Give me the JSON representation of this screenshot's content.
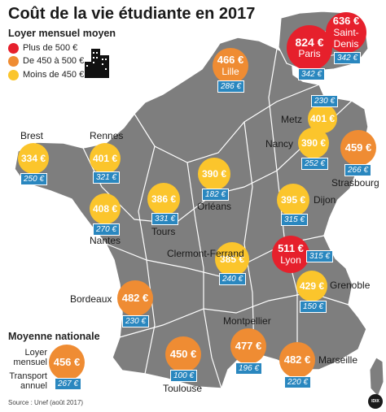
{
  "title": "Coût de la vie étudiante en 2017",
  "legend": {
    "title": "Loyer mensuel moyen",
    "items": [
      {
        "label": "Plus de 500 €",
        "color": "#e6202c"
      },
      {
        "label": "De 450 à 500 €",
        "color": "#ef8c33"
      },
      {
        "label": "Moins de 450 €",
        "color": "#fbc52c"
      }
    ]
  },
  "colors": {
    "map_fill": "#7e7e7e",
    "corsica_fill": "#7e7e7e",
    "border": "#ffffff",
    "tag_bg": "#2a87bf"
  },
  "cities": [
    {
      "name": "Saint-Denis",
      "rent": "636 €",
      "transport": "342 €",
      "tier": "red"
    },
    {
      "name": "Paris",
      "rent": "824 €",
      "transport": "342 €",
      "tier": "red"
    },
    {
      "name": "Lille",
      "rent": "466 €",
      "transport": "286 €",
      "tier": "orange"
    },
    {
      "name": "Metz",
      "rent": "401 €",
      "transport": "230 €",
      "tier": "yellow"
    },
    {
      "name": "Nancy",
      "rent": "390 €",
      "transport": "252 €",
      "tier": "yellow"
    },
    {
      "name": "Strasbourg",
      "rent": "459 €",
      "transport": "266 €",
      "tier": "orange"
    },
    {
      "name": "Brest",
      "rent": "334 €",
      "transport": "250 €",
      "tier": "yellow"
    },
    {
      "name": "Rennes",
      "rent": "401 €",
      "transport": "321 €",
      "tier": "yellow"
    },
    {
      "name": "Nantes",
      "rent": "408 €",
      "transport": "270 €",
      "tier": "yellow"
    },
    {
      "name": "Tours",
      "rent": "386 €",
      "transport": "331 €",
      "tier": "yellow"
    },
    {
      "name": "Orléans",
      "rent": "390 €",
      "transport": "182 €",
      "tier": "yellow"
    },
    {
      "name": "Dijon",
      "rent": "395 €",
      "transport": "315 €",
      "tier": "yellow"
    },
    {
      "name": "Clermont-Ferrand",
      "rent": "385 €",
      "transport": "240 €",
      "tier": "yellow"
    },
    {
      "name": "Lyon",
      "rent": "511 €",
      "transport": "315 €",
      "tier": "red"
    },
    {
      "name": "Grenoble",
      "rent": "429 €",
      "transport": "150 €",
      "tier": "yellow"
    },
    {
      "name": "Bordeaux",
      "rent": "482 €",
      "transport": "230 €",
      "tier": "orange"
    },
    {
      "name": "Toulouse",
      "rent": "450 €",
      "transport": "100 €",
      "tier": "orange"
    },
    {
      "name": "Montpellier",
      "rent": "477 €",
      "transport": "196 €",
      "tier": "orange"
    },
    {
      "name": "Marseille",
      "rent": "482 €",
      "transport": "220 €",
      "tier": "orange"
    }
  ],
  "national": {
    "title": "Moyenne nationale",
    "rent_label": "Loyer mensuel",
    "transport_label": "Transport annuel",
    "rent": "456 €",
    "transport": "267 €"
  },
  "source": "Source : Unef (août 2017)",
  "logo": "IDIX"
}
